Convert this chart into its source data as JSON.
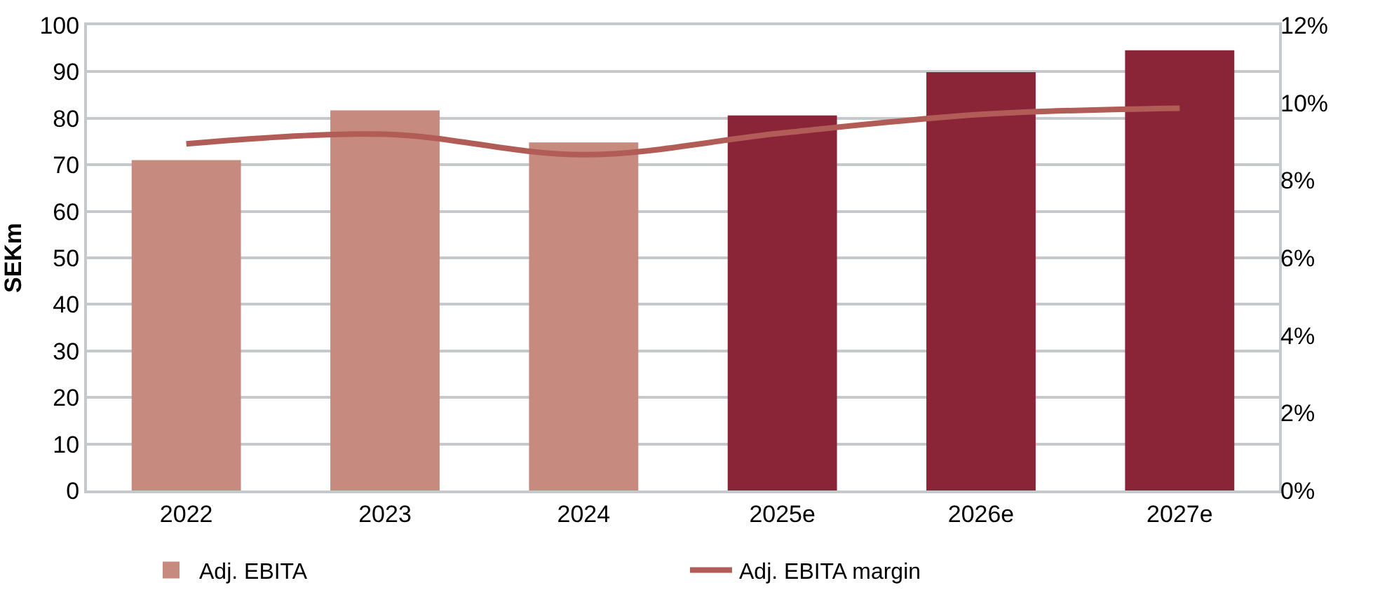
{
  "chart_data": {
    "type": "bar",
    "ylabel": "SEKm",
    "categories": [
      "2022",
      "2023",
      "2024",
      "2025e",
      "2026e",
      "2027e"
    ],
    "series": [
      {
        "name": "Adj. EBITA",
        "color": "#c78a7f",
        "colors": [
          "#c78a7f",
          "#c78a7f",
          "#c78a7f",
          "#8a2437",
          "#8a2437",
          "#8a2437"
        ],
        "values": [
          71,
          81.7,
          74.8,
          80.6,
          89.9,
          94.6
        ]
      },
      {
        "name": "Adj. EBITA margin",
        "type": "line",
        "axis": "y2",
        "color": "#b25c57",
        "values": [
          8.94,
          9.19,
          8.66,
          9.22,
          9.7,
          9.86
        ]
      }
    ],
    "ylim": [
      0,
      100
    ],
    "yticks": [
      0,
      10,
      20,
      30,
      40,
      50,
      60,
      70,
      80,
      90,
      100
    ],
    "y2lim": [
      0,
      12
    ],
    "y2ticks": [
      {
        "value": 0,
        "label": "0%"
      },
      {
        "value": 2,
        "label": "2%"
      },
      {
        "value": 4,
        "label": "4%"
      },
      {
        "value": 6,
        "label": "6%"
      },
      {
        "value": 8,
        "label": "8%"
      },
      {
        "value": 10,
        "label": "10%"
      },
      {
        "value": 12,
        "label": "12%"
      }
    ],
    "grid": "y",
    "legend": "bottom",
    "marker": "none",
    "line_style": "solid"
  }
}
